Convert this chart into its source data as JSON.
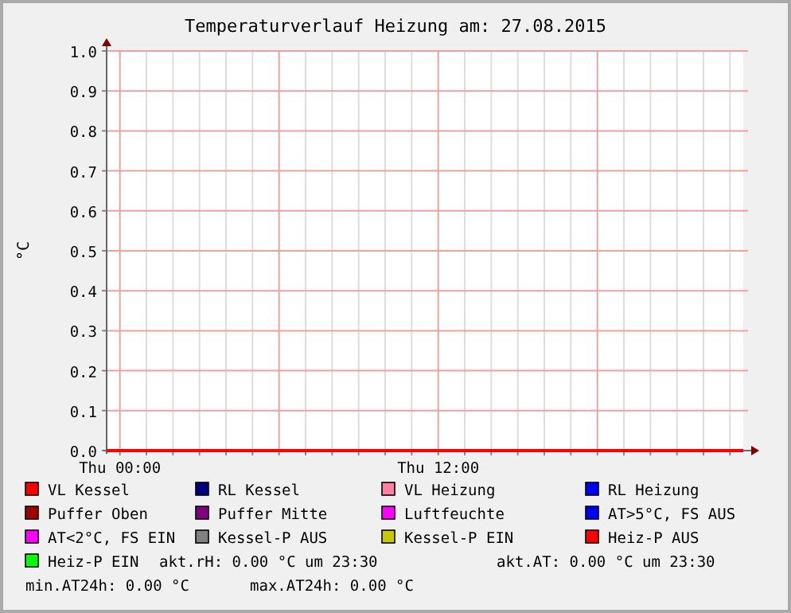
{
  "chart_data": {
    "type": "line",
    "title": "Temperaturverlauf Heizung am: 27.08.2015",
    "ylabel": "°C",
    "x": [
      "2015-08-26T23:30",
      "2015-08-27T23:30"
    ],
    "xlim": [
      "2015-08-26T23:30",
      "2015-08-27T23:30"
    ],
    "xticks": [
      {
        "value": "2015-08-27T00:00",
        "label": "Thu 00:00"
      },
      {
        "value": "2015-08-27T01:00",
        "label": null
      },
      {
        "value": "2015-08-27T02:00",
        "label": null
      },
      {
        "value": "2015-08-27T03:00",
        "label": null
      },
      {
        "value": "2015-08-27T04:00",
        "label": null
      },
      {
        "value": "2015-08-27T05:00",
        "label": null
      },
      {
        "value": "2015-08-27T06:00",
        "label": null
      },
      {
        "value": "2015-08-27T07:00",
        "label": null
      },
      {
        "value": "2015-08-27T08:00",
        "label": null
      },
      {
        "value": "2015-08-27T09:00",
        "label": null
      },
      {
        "value": "2015-08-27T10:00",
        "label": null
      },
      {
        "value": "2015-08-27T11:00",
        "label": null
      },
      {
        "value": "2015-08-27T12:00",
        "label": "Thu 12:00"
      },
      {
        "value": "2015-08-27T13:00",
        "label": null
      },
      {
        "value": "2015-08-27T14:00",
        "label": null
      },
      {
        "value": "2015-08-27T15:00",
        "label": null
      },
      {
        "value": "2015-08-27T16:00",
        "label": null
      },
      {
        "value": "2015-08-27T17:00",
        "label": null
      },
      {
        "value": "2015-08-27T18:00",
        "label": null
      },
      {
        "value": "2015-08-27T19:00",
        "label": null
      },
      {
        "value": "2015-08-27T20:00",
        "label": null
      },
      {
        "value": "2015-08-27T21:00",
        "label": null
      },
      {
        "value": "2015-08-27T22:00",
        "label": null
      },
      {
        "value": "2015-08-27T23:00",
        "label": null
      }
    ],
    "ylim": [
      0,
      1
    ],
    "yticks": [
      {
        "value": 0,
        "label": "0.0"
      },
      0.1,
      0.2,
      0.3,
      0.4,
      0.5,
      0.6,
      0.7,
      0.8,
      0.9,
      {
        "value": 1,
        "label": "1.0"
      }
    ],
    "grid": true,
    "legend": "bottom",
    "line_style": "solid",
    "series": [
      {
        "name": "VL Kessel",
        "color": "#ff0000",
        "values": [
          0,
          0
        ]
      },
      {
        "name": "RL Kessel",
        "color": "#000080",
        "values": [
          null,
          null
        ]
      },
      {
        "name": "VL Heizung",
        "color": "#ff80a0",
        "values": [
          null,
          null
        ]
      },
      {
        "name": "RL Heizung",
        "color": "#0000ff",
        "values": [
          null,
          null
        ]
      },
      {
        "name": "Puffer Oben",
        "color": "#a00000",
        "values": [
          null,
          null
        ]
      },
      {
        "name": "Puffer Mitte",
        "color": "#800080",
        "values": [
          null,
          null
        ]
      },
      {
        "name": "Luftfeuchte",
        "color": "#ff00ff",
        "values": [
          null,
          null
        ]
      },
      {
        "name": "AT>5°C, FS AUS",
        "color": "#0000ff",
        "values": [
          null,
          null
        ]
      },
      {
        "name": "AT<2°C, FS EIN",
        "color": "#ff00ff",
        "values": [
          null,
          null
        ]
      },
      {
        "name": "Kessel-P AUS",
        "color": "#808080",
        "values": [
          null,
          null
        ]
      },
      {
        "name": "Kessel-P EIN",
        "color": "#c8c800",
        "values": [
          null,
          null
        ]
      },
      {
        "name": "Heiz-P AUS",
        "color": "#ff0000",
        "values": [
          null,
          null
        ]
      },
      {
        "name": "Heiz-P EIN",
        "color": "#00ff00",
        "values": [
          null,
          null
        ]
      }
    ],
    "annotations": [
      "akt.rH: 0.00 °C um 23:30",
      "akt.AT: 0.00 °C um 23:30",
      "min.AT24h: 0.00 °C",
      "max.AT24h: 0.00 °C"
    ]
  }
}
